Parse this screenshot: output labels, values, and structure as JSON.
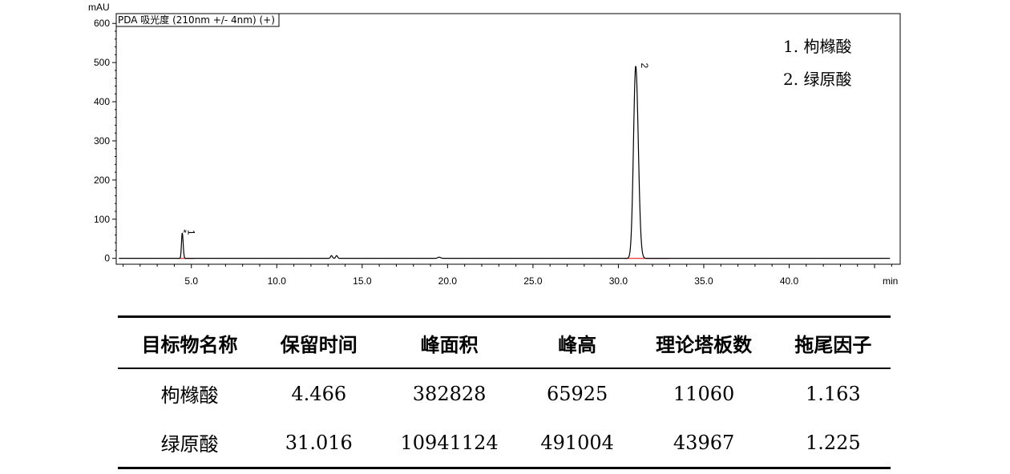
{
  "chart_data": {
    "type": "line",
    "title": "PDA 吸光度 (210nm +/- 4nm) (+)",
    "ylabel": "mAU",
    "xlabel": "min",
    "xlim": [
      0.6,
      46.5
    ],
    "ylim": [
      -15,
      625
    ],
    "x_ticks": [
      5.0,
      10.0,
      15.0,
      20.0,
      25.0,
      30.0,
      35.0,
      40.0
    ],
    "x_tick_labels": [
      "5.0",
      "10.0",
      "15.0",
      "20.0",
      "25.0",
      "30.0",
      "35.0",
      "40.0"
    ],
    "y_ticks": [
      0,
      100,
      200,
      300,
      400,
      500,
      600
    ],
    "y_tick_labels": [
      "0",
      "100",
      "200",
      "300",
      "400",
      "500",
      "600"
    ],
    "baseline": 0,
    "peaks": [
      {
        "label": "1",
        "marker": "*",
        "rt": 4.466,
        "height": 65,
        "sigma": 0.045
      },
      {
        "label": "",
        "marker": "",
        "rt": 13.2,
        "height": 7,
        "sigma": 0.05
      },
      {
        "label": "",
        "marker": "",
        "rt": 13.5,
        "height": 7,
        "sigma": 0.05
      },
      {
        "label": "",
        "marker": "",
        "rt": 19.5,
        "height": 3,
        "sigma": 0.08
      },
      {
        "label": "2",
        "marker": "",
        "rt": 31.016,
        "height": 491,
        "sigma": 0.13
      }
    ],
    "legend": [
      "1.  枸橼酸",
      "2.  绿原酸"
    ],
    "legend_position": "top-right"
  },
  "table": {
    "headers": [
      "目标物名称",
      "保留时间",
      "峰面积",
      "峰高",
      "理论塔板数",
      "拖尾因子"
    ],
    "rows": [
      [
        "枸橼酸",
        "4.466",
        "382828",
        "65925",
        "11060",
        "1.163"
      ],
      [
        "绿原酸",
        "31.016",
        "10941124",
        "491004",
        "43967",
        "1.225"
      ]
    ]
  }
}
